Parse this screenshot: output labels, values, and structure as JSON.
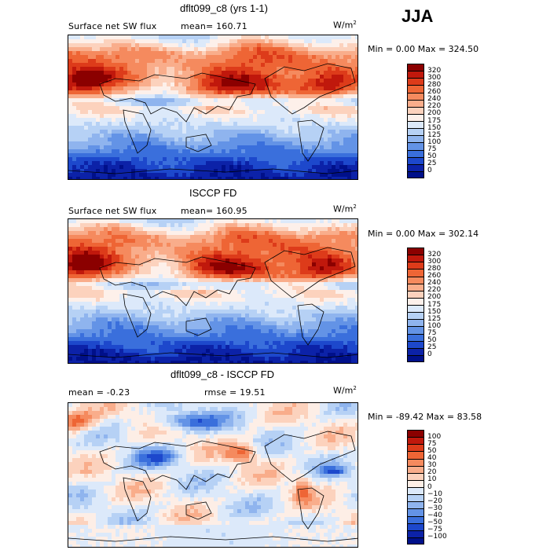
{
  "season": "JJA",
  "chart_data": [
    {
      "type": "heatmap",
      "title": "dflt099_c8 (yrs 1-1)",
      "subtitle_left": "Surface net SW flux",
      "stat_text": "mean= 160.71",
      "units": "W/m",
      "units_exp": "2",
      "minmax_text": "Min =    0.00 Max = 324.50",
      "stats": {
        "mean": 160.71,
        "min": 0.0,
        "max": 324.5
      },
      "colorbar": {
        "levels": [
          "320",
          "300",
          "280",
          "260",
          "240",
          "220",
          "200",
          "175",
          "150",
          "125",
          "100",
          "75",
          "50",
          "25",
          "0"
        ],
        "colors": [
          "#8b0000",
          "#c0180c",
          "#dd3b1a",
          "#ee6535",
          "#f58a5e",
          "#f9ad8b",
          "#fcd2bd",
          "#fdf0ea",
          "#dce9fa",
          "#b6d1f5",
          "#8fb4ee",
          "#6393e6",
          "#3a6fdc",
          "#1d48cc",
          "#0c22a8",
          "#00108a"
        ]
      }
    },
    {
      "type": "heatmap",
      "title": "ISCCP FD",
      "subtitle_left": "Surface net SW flux",
      "stat_text": "mean= 160.95",
      "units": "W/m",
      "units_exp": "2",
      "minmax_text": "Min =    0.00 Max = 302.14",
      "stats": {
        "mean": 160.95,
        "min": 0.0,
        "max": 302.14
      },
      "colorbar": {
        "levels": [
          "320",
          "300",
          "280",
          "260",
          "240",
          "220",
          "200",
          "175",
          "150",
          "125",
          "100",
          "75",
          "50",
          "25",
          "0"
        ],
        "colors": [
          "#8b0000",
          "#c0180c",
          "#dd3b1a",
          "#ee6535",
          "#f58a5e",
          "#f9ad8b",
          "#fcd2bd",
          "#fdf0ea",
          "#dce9fa",
          "#b6d1f5",
          "#8fb4ee",
          "#6393e6",
          "#3a6fdc",
          "#1d48cc",
          "#0c22a8",
          "#00108a"
        ]
      }
    },
    {
      "type": "heatmap",
      "title": "dflt099_c8 - ISCCP FD",
      "subtitle_left": "mean =   -0.23",
      "stat_text": "rmse =  19.51",
      "units": "W/m",
      "units_exp": "2",
      "minmax_text": "Min = -89.42 Max =  83.58",
      "stats": {
        "mean": -0.23,
        "rmse": 19.51,
        "min": -89.42,
        "max": 83.58
      },
      "colorbar": {
        "levels": [
          "100",
          "75",
          "50",
          "40",
          "30",
          "20",
          "10",
          "0",
          "−10",
          "−20",
          "−30",
          "−40",
          "−50",
          "−75",
          "−100"
        ],
        "colors": [
          "#8b0000",
          "#c0180c",
          "#dd3b1a",
          "#ee6535",
          "#f58a5e",
          "#f9ad8b",
          "#fcd2bd",
          "#fdeee6",
          "#dce9fa",
          "#b6d1f5",
          "#8fb4ee",
          "#6393e6",
          "#3a6fdc",
          "#1d48cc",
          "#0c22a8",
          "#00108a"
        ]
      }
    }
  ]
}
